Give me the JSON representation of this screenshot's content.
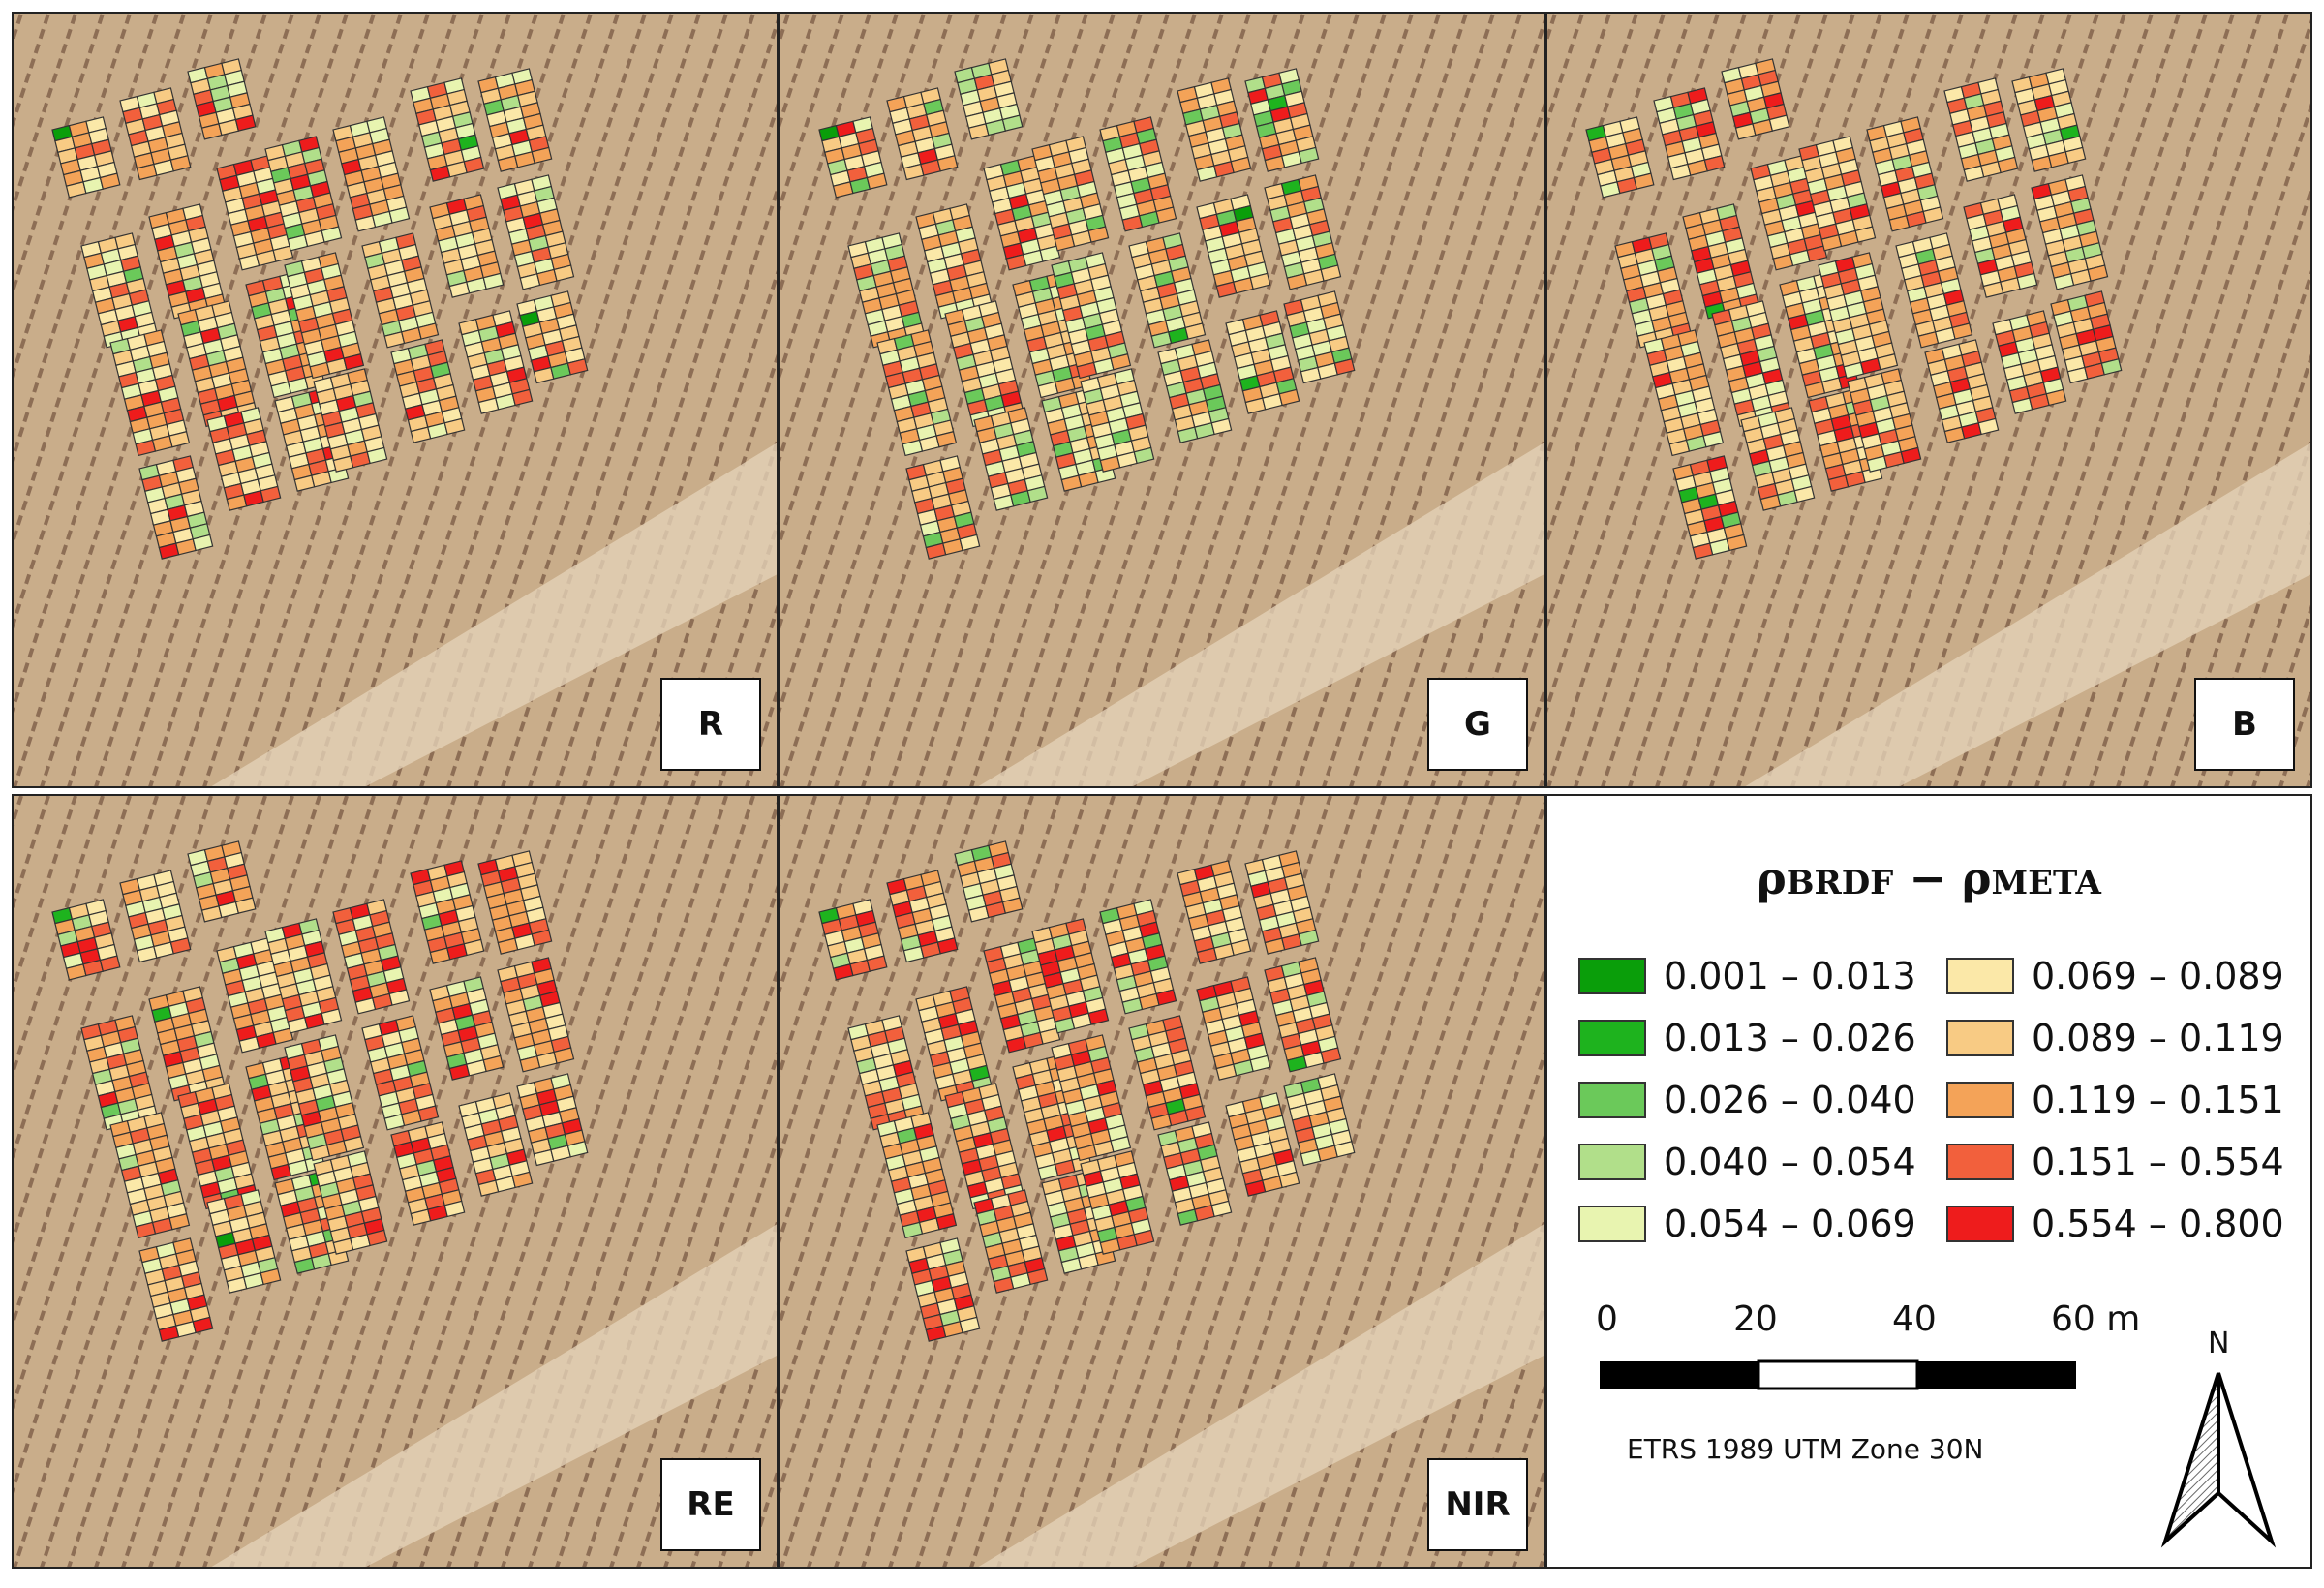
{
  "panels": [
    {
      "band": "R",
      "palette": [
        0.25,
        0.45,
        0.9,
        0.9,
        0.8,
        0.45,
        0.2,
        0.05,
        0.02,
        0.01
      ]
    },
    {
      "band": "G",
      "palette": [
        0.1,
        0.5,
        0.9,
        0.9,
        0.9,
        0.8,
        0.45,
        0.2,
        0.05,
        0.01
      ]
    },
    {
      "band": "B",
      "palette": [
        0.2,
        0.7,
        0.95,
        0.85,
        0.8,
        0.55,
        0.25,
        0.08,
        0.02,
        0.01
      ]
    },
    {
      "band": "RE",
      "palette": [
        0.4,
        0.8,
        0.95,
        0.9,
        0.75,
        0.5,
        0.25,
        0.08,
        0.02,
        0.01
      ]
    },
    {
      "band": "NIR",
      "palette": [
        0.5,
        0.85,
        0.95,
        0.9,
        0.75,
        0.5,
        0.3,
        0.1,
        0.02,
        0.01
      ]
    }
  ],
  "legend": {
    "title_main_1": "ρ",
    "title_sub_1": "BRDF",
    "title_minus": " − ",
    "title_main_2": "ρ",
    "title_sub_2": "META",
    "classes": [
      {
        "label": "0.001 – 0.013",
        "color": "#0a9e0a"
      },
      {
        "label": "0.013 – 0.026",
        "color": "#1eb31e"
      },
      {
        "label": "0.026 – 0.040",
        "color": "#6bc95a"
      },
      {
        "label": "0.040 – 0.054",
        "color": "#b1df8a"
      },
      {
        "label": "0.054 – 0.069",
        "color": "#e8f4b0"
      },
      {
        "label": "0.069 – 0.089",
        "color": "#fbe8a8"
      },
      {
        "label": "0.089 – 0.119",
        "color": "#f8cb84"
      },
      {
        "label": "0.119 – 0.151",
        "color": "#f4a358"
      },
      {
        "label": "0.151 – 0.554",
        "color": "#f2603c"
      },
      {
        "label": "0.554 – 0.800",
        "color": "#ee1c1c"
      }
    ]
  },
  "scalebar": {
    "ticks": [
      "0",
      "20",
      "40",
      "60 m"
    ]
  },
  "crs": "ETRS 1989 UTM Zone 30N",
  "north": "N"
}
